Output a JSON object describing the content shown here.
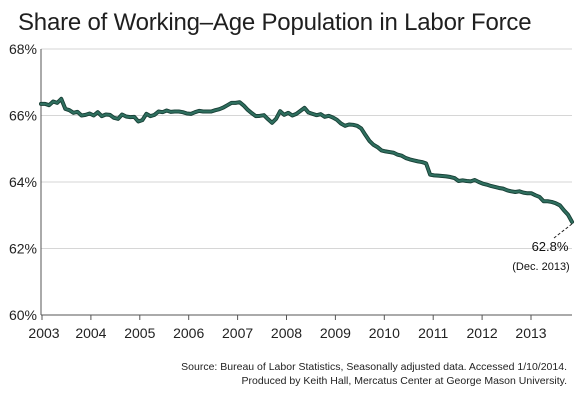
{
  "chart_data": {
    "type": "line",
    "title": "Share of Working–Age Population in Labor Force",
    "subtitle": "",
    "xlabel": "",
    "ylabel": "",
    "x_tick_labels": [
      "2003",
      "2004",
      "2005",
      "2006",
      "2007",
      "2008",
      "2009",
      "2010",
      "2011",
      "2012",
      "2013"
    ],
    "y_tick_labels": [
      "60%",
      "62%",
      "64%",
      "66%",
      "68%"
    ],
    "y_ticks": [
      60,
      62,
      64,
      66,
      68
    ],
    "xlim": [
      "Jan. 2003",
      "Dec. 2013"
    ],
    "ylim": [
      60,
      68
    ],
    "grid": "horizontal",
    "line_color": "#2f6f5f",
    "line_border_color": "#173f35",
    "annotation": {
      "value_label": "62.8%",
      "date_label": "(Dec. 2013)",
      "x": "Dec. 2013",
      "y": 62.8
    },
    "series": [
      {
        "values": [
          66.35,
          66.35,
          66.31,
          66.42,
          66.38,
          66.5,
          66.2,
          66.16,
          66.08,
          66.11,
          66.0,
          66.02,
          66.06,
          66.0,
          66.1,
          65.98,
          66.03,
          66.02,
          65.93,
          65.9,
          66.03,
          65.97,
          65.95,
          65.96,
          65.82,
          65.86,
          66.05,
          65.98,
          66.02,
          66.12,
          66.1,
          66.15,
          66.11,
          66.12,
          66.12,
          66.1,
          66.06,
          66.05,
          66.1,
          66.14,
          66.12,
          66.12,
          66.12,
          66.16,
          66.19,
          66.24,
          66.31,
          66.38,
          66.38,
          66.4,
          66.3,
          66.17,
          66.07,
          65.98,
          65.99,
          66.01,
          65.89,
          65.78,
          65.9,
          66.13,
          66.02,
          66.08,
          66.0,
          66.05,
          66.14,
          66.23,
          66.09,
          66.05,
          66.01,
          66.04,
          65.96,
          65.99,
          65.94,
          65.87,
          65.76,
          65.69,
          65.73,
          65.72,
          65.69,
          65.61,
          65.42,
          65.24,
          65.12,
          65.05,
          64.95,
          64.92,
          64.9,
          64.88,
          64.82,
          64.79,
          64.72,
          64.68,
          64.65,
          64.62,
          64.6,
          64.56,
          64.22,
          64.2,
          64.19,
          64.18,
          64.17,
          64.15,
          64.12,
          64.03,
          64.05,
          64.03,
          64.02,
          64.06,
          64.0,
          63.95,
          63.92,
          63.88,
          63.85,
          63.82,
          63.8,
          63.75,
          63.72,
          63.7,
          63.72,
          63.68,
          63.66,
          63.66,
          63.6,
          63.55,
          63.42,
          63.42,
          63.4,
          63.36,
          63.3,
          63.15,
          63.02,
          62.8
        ]
      }
    ]
  },
  "source": {
    "line1": "Source: Bureau of Labor Statistics, Seasonally adjusted data. Accessed 1/10/2014.",
    "line2": "Produced by Keith Hall, Mercatus Center at George Mason University."
  }
}
